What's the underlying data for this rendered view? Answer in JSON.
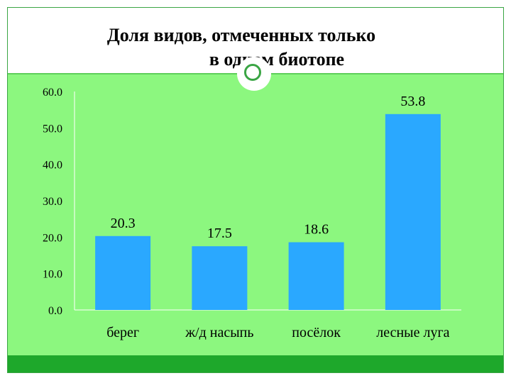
{
  "title_lines": [
    "Доля видов, отмеченных только",
    "в одном биотопе"
  ],
  "colors": {
    "bar": "#2aa8ff",
    "plot_bg": "#8cf77f",
    "accent": "#1ea82b",
    "border": "#3aa544"
  },
  "chart_data": {
    "type": "bar",
    "title": "Доля видов, отмеченных только в одном биотопе",
    "categories": [
      "берег",
      "ж/д насыпь",
      "посёлок",
      "лесные луга"
    ],
    "values": [
      20.3,
      17.5,
      18.6,
      53.8
    ],
    "value_labels": [
      "20.3",
      "17.5",
      "18.6",
      "53.8"
    ],
    "yticks": [
      "0.0",
      "10.0",
      "20.0",
      "30.0",
      "40.0",
      "50.0",
      "60.0"
    ],
    "ylim": [
      0,
      60
    ],
    "xlabel": "",
    "ylabel": "",
    "grid": false,
    "legend": "none"
  }
}
